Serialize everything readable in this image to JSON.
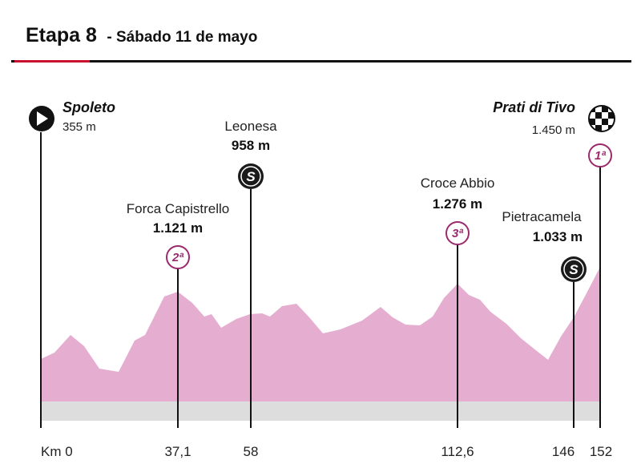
{
  "header": {
    "stage": "Etapa 8",
    "date": "- Sábado 11 de mayo"
  },
  "profile": {
    "fill_color": "#e5aed0",
    "ground_color": "#dddddd",
    "start": {
      "name": "Spoleto",
      "altitude": "355 m"
    },
    "finish": {
      "name": "Prati di Tivo",
      "altitude": "1.450 m",
      "category": "1ª"
    },
    "points": [
      {
        "name": "Forca Capistrello",
        "altitude": "1.121 m",
        "km": "37,1",
        "category": "2ª"
      },
      {
        "name": "Leonesa",
        "altitude": "958 m",
        "km": "58",
        "sprint": "S"
      },
      {
        "name": "Croce Abbio",
        "altitude": "1.276 m",
        "km": "112,6",
        "category": "3ª"
      },
      {
        "name": "Pietracamela",
        "altitude": "1.033 m",
        "km": "146",
        "sprint": "S"
      }
    ],
    "km_labels": [
      "Km 0",
      "37,1",
      "58",
      "112,6",
      "146",
      "152"
    ],
    "icons": {
      "start": "play-circle-icon",
      "finish": "checkered-flag-icon"
    }
  }
}
